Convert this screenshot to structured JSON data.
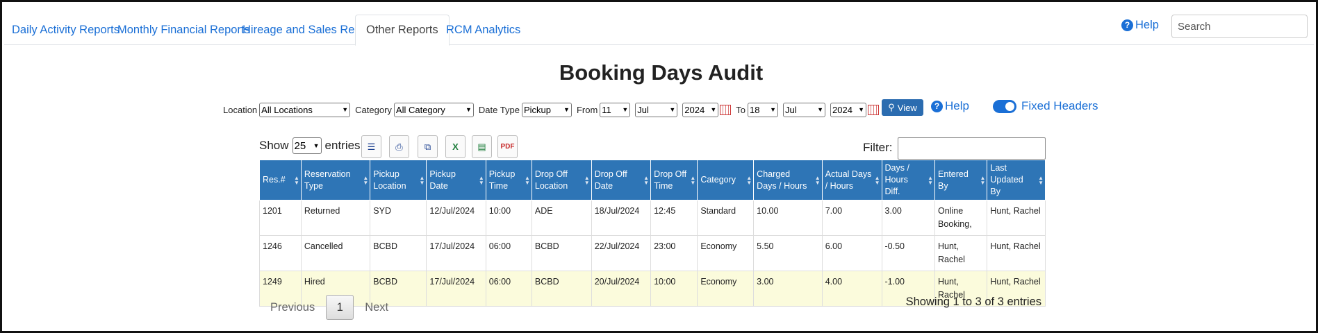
{
  "nav": {
    "tabs": [
      {
        "label": "Daily Activity Reports",
        "active": false
      },
      {
        "label": "Monthly Financial Reports",
        "active": false
      },
      {
        "label": "Hireage and Sales Reports",
        "active": false
      },
      {
        "label": "Other Reports",
        "active": true
      },
      {
        "label": "RCM Analytics",
        "active": false
      }
    ],
    "help_label": "Help",
    "search_placeholder": "Search"
  },
  "page_title": "Booking Days Audit",
  "filters": {
    "location_label": "Location",
    "location_value": "All Locations",
    "category_label": "Category",
    "category_value": "All Category",
    "date_type_label": "Date Type",
    "date_type_value": "Pickup",
    "from_label": "From",
    "from_day": "11",
    "from_month": "Jul",
    "from_year": "2024",
    "to_label": "To",
    "to_day": "18",
    "to_month": "Jul",
    "to_year": "2024",
    "view_label": "View",
    "help_label": "Help",
    "fixed_headers_label": "Fixed Headers",
    "fixed_headers_on": true
  },
  "table_controls": {
    "show_label": "Show",
    "entries_value": "25",
    "entries_label": "entries",
    "filter_label": "Filter:"
  },
  "table": {
    "columns": [
      "Res.#",
      "Reservation Type",
      "Pickup Location",
      "Pickup Date",
      "Pickup Time",
      "Drop Off Location",
      "Drop Off Date",
      "Drop Off Time",
      "Category",
      "Charged Days / Hours",
      "Actual Days / Hours",
      "Days / Hours Diff.",
      "Entered By",
      "Last Updated By"
    ],
    "rows": [
      [
        "1201",
        "Returned",
        "SYD",
        "12/Jul/2024",
        "10:00",
        "ADE",
        "18/Jul/2024",
        "12:45",
        "Standard",
        "10.00",
        "7.00",
        "3.00",
        "Online Booking,",
        "Hunt, Rachel"
      ],
      [
        "1246",
        "Cancelled",
        "BCBD",
        "17/Jul/2024",
        "06:00",
        "BCBD",
        "22/Jul/2024",
        "23:00",
        "Economy",
        "5.50",
        "6.00",
        "-0.50",
        "Hunt, Rachel",
        "Hunt, Rachel"
      ],
      [
        "1249",
        "Hired",
        "BCBD",
        "17/Jul/2024",
        "06:00",
        "BCBD",
        "20/Jul/2024",
        "10:00",
        "Economy",
        "3.00",
        "4.00",
        "-1.00",
        "Hunt, Rachel",
        "Hunt, Rachel"
      ]
    ]
  },
  "pagination": {
    "previous_label": "Previous",
    "current_page": "1",
    "next_label": "Next",
    "info": "Showing 1 to 3 of 3 entries"
  },
  "colors": {
    "accent": "#1a6fd6",
    "header_bg": "#2e75b6",
    "res_number": "#e00000",
    "highlight_row": "#fbfbdc"
  }
}
